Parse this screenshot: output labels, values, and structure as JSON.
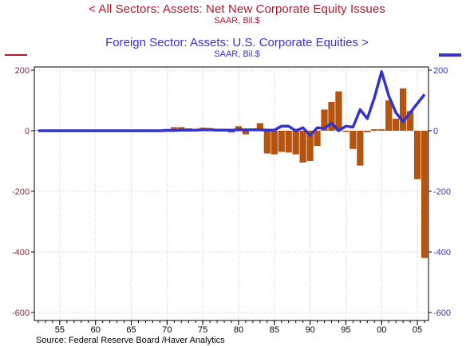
{
  "chart_data": {
    "type": "bar+line",
    "title_left": "<  All Sectors: Assets: Net New Corporate Equity Issues",
    "subtitle_left": "SAAR, Bil.$",
    "title_right": "Foreign Sector: Assets: U.S. Corporate Equities  >",
    "subtitle_right": "SAAR, Bil.$",
    "source": "Source:  Federal Reserve Board /Haver Analytics",
    "xlim": [
      1952,
      2006
    ],
    "ylim": [
      -600,
      200
    ],
    "y_ticks": [
      200,
      0,
      -200,
      -400,
      -600
    ],
    "y_tick_labels": [
      "200",
      "0",
      "-200",
      "-400",
      "-600"
    ],
    "x_ticks": [
      1955,
      1960,
      1965,
      1970,
      1975,
      1980,
      1985,
      1990,
      1995,
      2000,
      2005
    ],
    "x_tick_labels": [
      "55",
      "60",
      "65",
      "70",
      "75",
      "80",
      "85",
      "90",
      "95",
      "00",
      "05"
    ],
    "grid": true,
    "colors": {
      "bars": "#b5540f",
      "line": "#3333cc",
      "left_title": "#b0182c",
      "right_title": "#3333cc"
    },
    "series": [
      {
        "name": "All Sectors: Assets: Net New Corporate Equity Issues",
        "kind": "bar",
        "axis": "left",
        "x": [
          1952,
          1953,
          1954,
          1955,
          1956,
          1957,
          1958,
          1959,
          1960,
          1961,
          1962,
          1963,
          1964,
          1965,
          1966,
          1967,
          1968,
          1969,
          1970,
          1971,
          1972,
          1973,
          1974,
          1975,
          1976,
          1977,
          1978,
          1979,
          1980,
          1981,
          1982,
          1983,
          1984,
          1985,
          1986,
          1987,
          1988,
          1989,
          1990,
          1991,
          1992,
          1993,
          1994,
          1995,
          1996,
          1997,
          1998,
          1999,
          2000,
          2001,
          2002,
          2003,
          2004,
          2005,
          2006
        ],
        "values": [
          2,
          2,
          2,
          2,
          2,
          3,
          2,
          3,
          2,
          3,
          1,
          -1,
          2,
          0,
          1,
          2,
          -1,
          3,
          6,
          12,
          12,
          8,
          4,
          10,
          9,
          3,
          0,
          -6,
          15,
          -12,
          8,
          25,
          -75,
          -78,
          -70,
          -72,
          -78,
          -105,
          -100,
          -50,
          70,
          95,
          130,
          -4,
          -60,
          -115,
          -5,
          5,
          5,
          100,
          40,
          140,
          65,
          -160,
          -420
        ]
      },
      {
        "name": "Foreign Sector: Assets: U.S. Corporate Equities",
        "kind": "line",
        "axis": "right",
        "x": [
          1952,
          1953,
          1954,
          1955,
          1956,
          1957,
          1958,
          1959,
          1960,
          1961,
          1962,
          1963,
          1964,
          1965,
          1966,
          1967,
          1968,
          1969,
          1970,
          1971,
          1972,
          1973,
          1974,
          1975,
          1976,
          1977,
          1978,
          1979,
          1980,
          1981,
          1982,
          1983,
          1984,
          1985,
          1986,
          1987,
          1988,
          1989,
          1990,
          1991,
          1992,
          1993,
          1994,
          1995,
          1996,
          1997,
          1998,
          1999,
          2000,
          2001,
          2002,
          2003,
          2004,
          2005,
          2006
        ],
        "values": [
          0,
          0,
          0,
          0,
          0,
          0,
          0,
          0,
          0,
          0,
          0,
          0,
          0,
          0,
          0,
          0,
          0,
          0,
          1,
          1,
          2,
          2,
          2,
          3,
          3,
          2,
          2,
          2,
          3,
          3,
          3,
          3,
          2,
          2,
          15,
          15,
          0,
          10,
          -15,
          10,
          8,
          25,
          0,
          15,
          12,
          70,
          40,
          110,
          195,
          115,
          60,
          30,
          60,
          90,
          120
        ]
      }
    ]
  }
}
